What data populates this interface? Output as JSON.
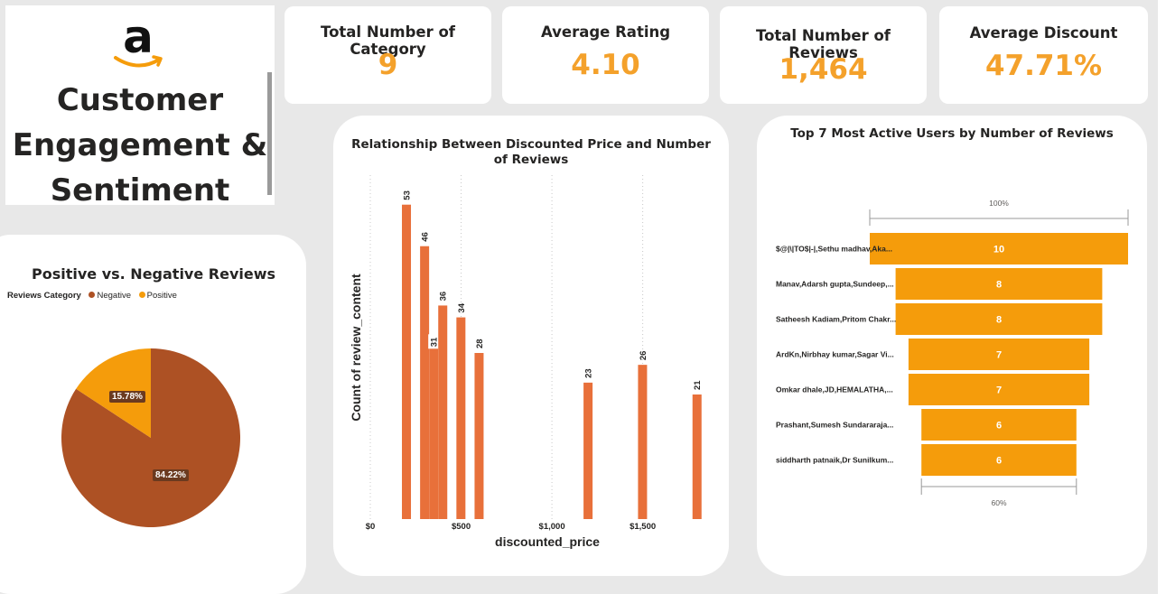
{
  "header": {
    "logo_letter": "a",
    "title_lines": [
      "Customer",
      "Engagement &",
      "Sentiment"
    ]
  },
  "kpis": [
    {
      "label": "Total Number of Category",
      "value": "9"
    },
    {
      "label": "Average Rating",
      "value": "4.10"
    },
    {
      "label": "Total Number of Reviews",
      "value": "1,464"
    },
    {
      "label": "Average Discount",
      "value": "47.71%"
    }
  ],
  "colors": {
    "accent": "#f4a12b",
    "negative": "#ad5124",
    "positive": "#f59c0b",
    "bar": "#e8703a",
    "funnel": "#f59c0b",
    "background": "#e8e8e8"
  },
  "pie": {
    "title": "Positive vs. Negative Reviews",
    "legend_title": "Reviews Category",
    "label_negative": "84.22%",
    "label_positive": "15.78%"
  },
  "bar": {
    "title": "Relationship Between Discounted Price and Number of Reviews",
    "xlabel": "discounted_price",
    "ylabel": "Count of review_content"
  },
  "funnel": {
    "title": "Top 7 Most Active Users by Number of Reviews",
    "top_pct": "100%",
    "bottom_pct": "60%"
  },
  "chart_data": [
    {
      "type": "pie",
      "title": "Positive vs. Negative Reviews",
      "legend_title": "Reviews Category",
      "legend_placement": "top-left",
      "series": [
        {
          "name": "Negative",
          "value": 84.22,
          "label": "84.22%",
          "color": "#ad5124"
        },
        {
          "name": "Positive",
          "value": 15.78,
          "label": "15.78%",
          "color": "#f59c0b"
        }
      ]
    },
    {
      "type": "bar",
      "title": "Relationship Between Discounted Price and Number of Reviews",
      "xlabel": "discounted_price",
      "ylabel": "Count of review_content",
      "xlim": [
        0,
        1850
      ],
      "ylim": [
        0,
        56
      ],
      "x_ticks": [
        0,
        500,
        1000,
        1500
      ],
      "x_tick_labels": [
        "$0",
        "$500",
        "$1,000",
        "$1,500"
      ],
      "grid": "vertical dotted",
      "points": [
        {
          "x": 199,
          "y": 53
        },
        {
          "x": 299,
          "y": 46
        },
        {
          "x": 349,
          "y": 31
        },
        {
          "x": 399,
          "y": 36
        },
        {
          "x": 499,
          "y": 34
        },
        {
          "x": 599,
          "y": 28
        },
        {
          "x": 999,
          "y": 0
        },
        {
          "x": 1199,
          "y": 23
        },
        {
          "x": 1499,
          "y": 26
        },
        {
          "x": 1799,
          "y": 21
        }
      ],
      "data_labels": [
        "53",
        "46",
        "31",
        "36",
        "34",
        "28",
        "",
        "23",
        "26",
        "21"
      ]
    },
    {
      "type": "bar",
      "orientation": "funnel",
      "title": "Top 7 Most Active Users by Number of Reviews",
      "categories": [
        "$@|\\|TO$|-|,Sethu madhav,Aka...",
        "Manav,Adarsh gupta,Sundeep,...",
        "Satheesh Kadiam,Pritom Chakr...",
        "ArdKn,Nirbhay kumar,Sagar Vi...",
        "Omkar dhale,JD,HEMALATHA,...",
        "Prashant,Sumesh Sundararaja...",
        "siddharth patnaik,Dr Sunilkum..."
      ],
      "values": [
        10,
        8,
        8,
        7,
        7,
        6,
        6
      ],
      "top_percent_label": "100%",
      "bottom_percent_label": "60%"
    }
  ]
}
